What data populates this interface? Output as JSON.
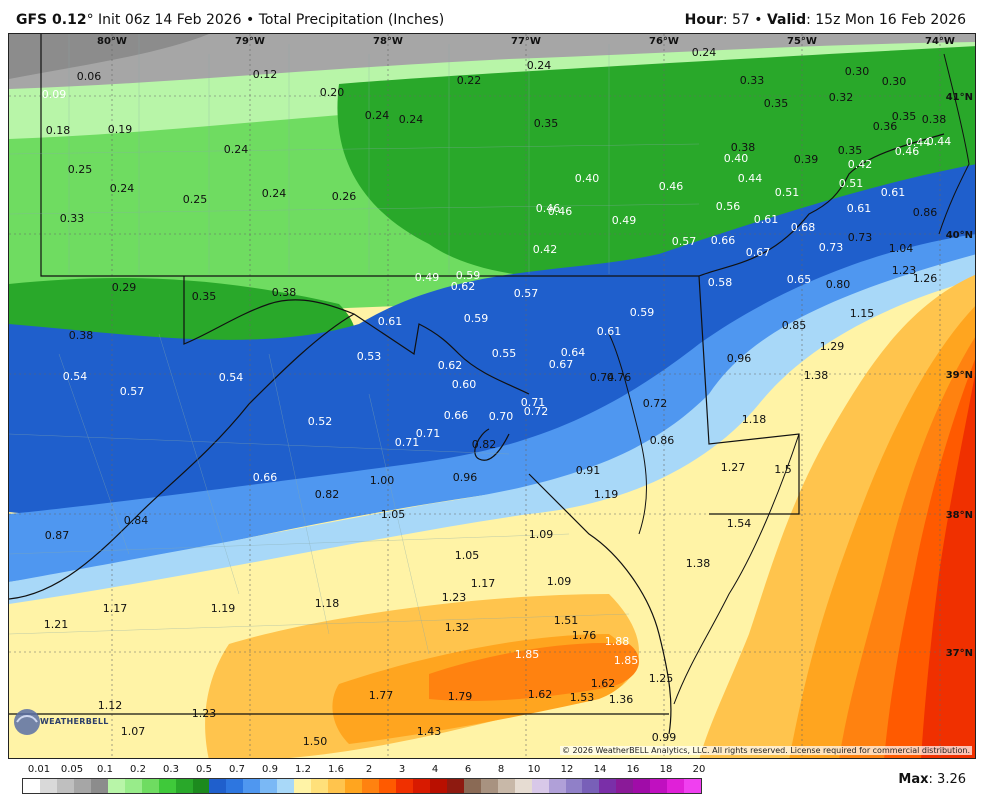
{
  "header": {
    "model": "GFS 0.12",
    "degree": "°",
    "init": " Init 06z 14 Feb 2026 • Total Precipitation (Inches)",
    "hour_label": "Hour",
    "hour_value": ": 57 • ",
    "valid_label": "Valid",
    "valid_value": ": 15z Mon 16 Feb 2026"
  },
  "map": {
    "lon_labels": [
      "80°W",
      "79°W",
      "78°W",
      "77°W",
      "76°W",
      "75°W",
      "74°W"
    ],
    "lat_labels": [
      "41°N",
      "40°N",
      "39°N",
      "38°N",
      "37°N"
    ],
    "copyright": "© 2026 WeatherBELL Analytics, LLC. All rights reserved. License required for commercial distribution.",
    "logo_text": "WEATHERBELL",
    "values": [
      "0.06",
      "0.09",
      "0.12",
      "0.20",
      "0.22",
      "0.24",
      "0.24",
      "0.33",
      "0.30",
      "0.30",
      "0.18",
      "0.19",
      "0.24",
      "0.24",
      "0.35",
      "0.35",
      "0.32",
      "0.36",
      "0.35",
      "0.38",
      "0.24",
      "0.38",
      "0.40",
      "0.39",
      "0.35",
      "0.42",
      "0.44",
      "0.44",
      "0.46",
      "0.25",
      "0.24",
      "0.25",
      "0.24",
      "0.26",
      "0.40",
      "0.46",
      "0.44",
      "0.51",
      "0.51",
      "0.61",
      "0.33",
      "0.46",
      "0.46",
      "0.49",
      "0.56",
      "0.61",
      "0.68",
      "0.61",
      "0.86",
      "0.42",
      "0.57",
      "0.66",
      "0.67",
      "0.73",
      "0.73",
      "1.04",
      "0.29",
      "0.35",
      "0.38",
      "0.49",
      "0.59",
      "0.62",
      "0.57",
      "0.58",
      "0.65",
      "0.80",
      "1.23",
      "1.26",
      "0.61",
      "0.59",
      "0.59",
      "0.61",
      "0.85",
      "1.15",
      "0.38",
      "0.53",
      "0.55",
      "0.64",
      "0.67",
      "0.96",
      "1.29",
      "0.54",
      "0.57",
      "0.54",
      "0.62",
      "0.60",
      "0.74",
      "0.76",
      "1.38",
      "0.71",
      "0.72",
      "0.52",
      "0.66",
      "0.70",
      "0.72",
      "0.86",
      "1.18",
      "0.71",
      "0.71",
      "0.82",
      "0.91",
      "1.27",
      "1.5",
      "0.66",
      "1.00",
      "0.96",
      "0.82",
      "1.19",
      "1.54",
      "0.84",
      "1.05",
      "1.09",
      "0.87",
      "1.05",
      "1.17",
      "1.09",
      "1.38",
      "1.17",
      "1.19",
      "1.18",
      "1.23",
      "1.21",
      "1.51",
      "1.32",
      "1.76",
      "1.88",
      "1.85",
      "1.85",
      "1.25",
      "1.62",
      "1.77",
      "1.79",
      "1.62",
      "1.53",
      "1.36",
      "1.12",
      "1.23",
      "1.07",
      "1.43",
      "1.50",
      "0.99"
    ]
  },
  "legend": {
    "ticks": [
      "0.01",
      "0.05",
      "0.1",
      "0.2",
      "0.3",
      "0.5",
      "0.7",
      "0.9",
      "1.2",
      "1.6",
      "2",
      "3",
      "4",
      "6",
      "8",
      "10",
      "12",
      "14",
      "16",
      "18",
      "20"
    ],
    "colors": [
      "#ffffff",
      "#d9d9d9",
      "#bfbfbf",
      "#a6a6a6",
      "#8c8c8c",
      "#b8f5a8",
      "#98ec8a",
      "#6fdc61",
      "#3fc93a",
      "#29a82a",
      "#1c8a1e",
      "#1f5fcc",
      "#2d76e0",
      "#4f97f0",
      "#7ab8f5",
      "#a8d8f8",
      "#fff3a6",
      "#ffe07a",
      "#ffc44d",
      "#ffa51f",
      "#ff8210",
      "#ff5a00",
      "#f03000",
      "#d81a00",
      "#b90f00",
      "#8e1a10",
      "#8a6a55",
      "#a89280",
      "#c8b8a8",
      "#e6dcd2",
      "#d8c8e8",
      "#b0a0d8",
      "#9080c8",
      "#7860b8",
      "#7a2fa8",
      "#8a1a98",
      "#a00ca8",
      "#c010c0",
      "#e020d8",
      "#f040f0"
    ],
    "max_label": "Max",
    "max_value": ": 3.26"
  }
}
